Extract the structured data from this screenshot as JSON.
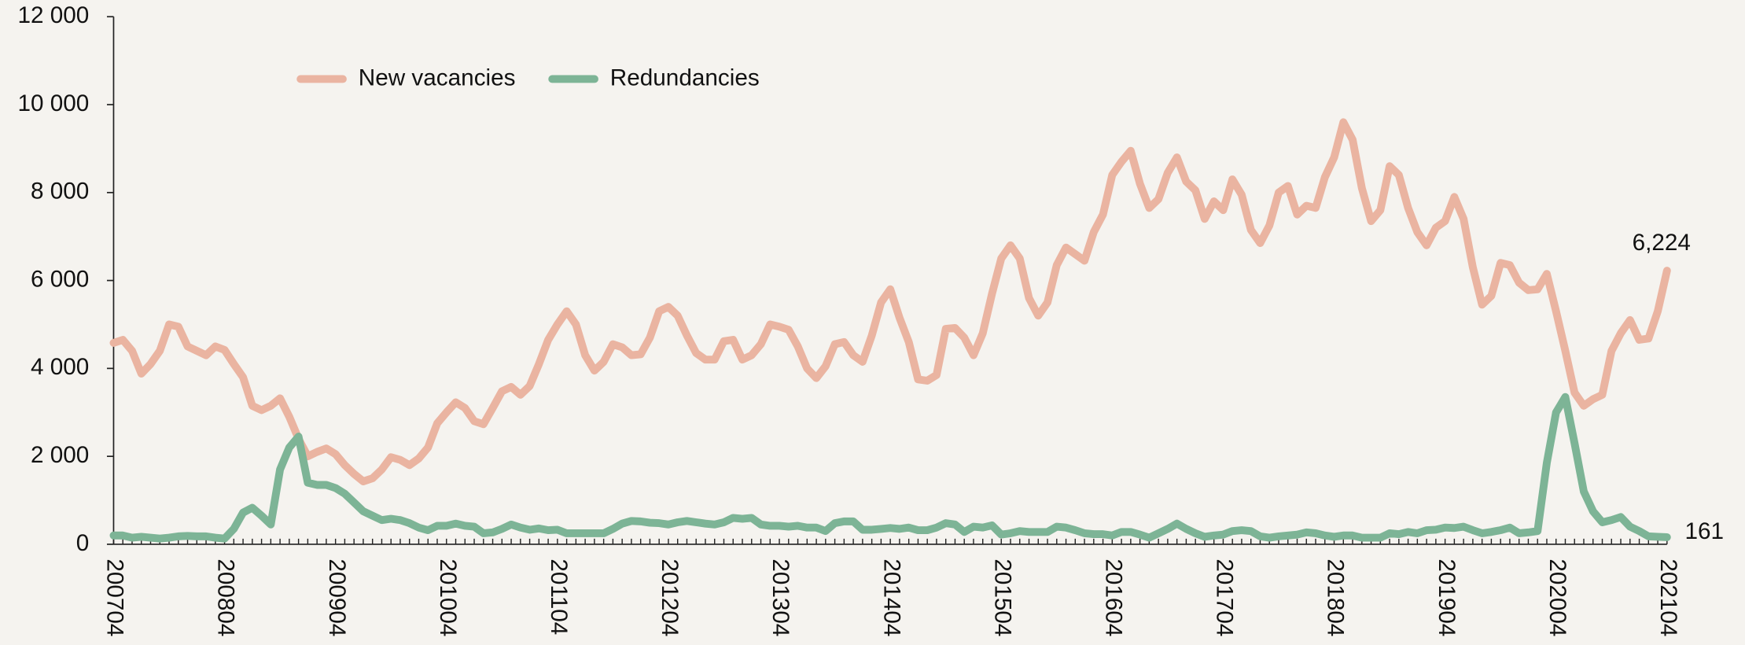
{
  "chart_data": {
    "type": "line",
    "categories": [
      "200704",
      null,
      null,
      null,
      null,
      null,
      null,
      null,
      null,
      null,
      null,
      null,
      "200804",
      null,
      null,
      null,
      null,
      null,
      null,
      null,
      null,
      null,
      null,
      null,
      "200904",
      null,
      null,
      null,
      null,
      null,
      null,
      null,
      null,
      null,
      null,
      null,
      "201004",
      null,
      null,
      null,
      null,
      null,
      null,
      null,
      null,
      null,
      null,
      null,
      "201104",
      null,
      null,
      null,
      null,
      null,
      null,
      null,
      null,
      null,
      null,
      null,
      "201204",
      null,
      null,
      null,
      null,
      null,
      null,
      null,
      null,
      null,
      null,
      null,
      "201304",
      null,
      null,
      null,
      null,
      null,
      null,
      null,
      null,
      null,
      null,
      null,
      "201404",
      null,
      null,
      null,
      null,
      null,
      null,
      null,
      null,
      null,
      null,
      null,
      "201504",
      null,
      null,
      null,
      null,
      null,
      null,
      null,
      null,
      null,
      null,
      null,
      "201604",
      null,
      null,
      null,
      null,
      null,
      null,
      null,
      null,
      null,
      null,
      null,
      "201704",
      null,
      null,
      null,
      null,
      null,
      null,
      null,
      null,
      null,
      null,
      null,
      "201804",
      null,
      null,
      null,
      null,
      null,
      null,
      null,
      null,
      null,
      null,
      null,
      "201904",
      null,
      null,
      null,
      null,
      null,
      null,
      null,
      null,
      null,
      null,
      null,
      "202004",
      null,
      null,
      null,
      null,
      null,
      null,
      null,
      null,
      null,
      null,
      null,
      "202104"
    ],
    "series": [
      {
        "name": "New vacancies",
        "color": "#eab4a1",
        "values": [
          4580,
          4650,
          4400,
          3880,
          4100,
          4400,
          5000,
          4950,
          4500,
          4400,
          4300,
          4500,
          4420,
          4100,
          3800,
          3150,
          3050,
          3150,
          3320,
          2900,
          2400,
          2000,
          2100,
          2180,
          2050,
          1800,
          1600,
          1430,
          1500,
          1700,
          1980,
          1920,
          1800,
          1950,
          2200,
          2750,
          3000,
          3230,
          3100,
          2800,
          2730,
          3100,
          3480,
          3580,
          3400,
          3600,
          4100,
          4650,
          5000,
          5300,
          5000,
          4300,
          3950,
          4150,
          4550,
          4480,
          4300,
          4320,
          4700,
          5300,
          5400,
          5200,
          4750,
          4350,
          4200,
          4200,
          4620,
          4650,
          4200,
          4300,
          4550,
          5000,
          4950,
          4880,
          4500,
          4000,
          3780,
          4050,
          4550,
          4600,
          4300,
          4150,
          4750,
          5500,
          5800,
          5150,
          4600,
          3750,
          3720,
          3850,
          4900,
          4920,
          4700,
          4300,
          4800,
          5700,
          6500,
          6800,
          6500,
          5600,
          5200,
          5500,
          6350,
          6750,
          6600,
          6450,
          7100,
          7500,
          8400,
          8700,
          8950,
          8200,
          7650,
          7850,
          8450,
          8800,
          8250,
          8050,
          7400,
          7800,
          7600,
          8300,
          7950,
          7150,
          6850,
          7250,
          8000,
          8150,
          7500,
          7700,
          7650,
          8350,
          8800,
          9600,
          9200,
          8100,
          7350,
          7600,
          8600,
          8400,
          7650,
          7100,
          6800,
          7200,
          7350,
          7900,
          7400,
          6300,
          5450,
          5650,
          6400,
          6350,
          5950,
          5780,
          5800,
          6150,
          5300,
          4400,
          3450,
          3150,
          3300,
          3400,
          4400,
          4800,
          5100,
          4650,
          4680,
          5300,
          6224
        ],
        "value_labels": [
          null,
          null,
          null,
          null,
          null,
          null,
          null,
          null,
          null,
          null,
          null,
          null,
          null,
          null,
          null,
          null,
          null,
          null,
          null,
          null,
          null,
          null,
          null,
          null,
          null,
          null,
          null,
          null,
          null,
          null,
          null,
          null,
          null,
          null,
          null,
          null,
          null,
          null,
          null,
          null,
          null,
          null,
          null,
          null,
          null,
          null,
          null,
          null,
          null,
          null,
          null,
          null,
          null,
          null,
          null,
          null,
          null,
          null,
          null,
          null,
          null,
          null,
          null,
          null,
          null,
          null,
          null,
          null,
          null,
          null,
          null,
          null,
          null,
          null,
          null,
          null,
          null,
          null,
          null,
          null,
          null,
          null,
          null,
          null,
          null,
          null,
          null,
          null,
          null,
          null,
          null,
          null,
          null,
          null,
          null,
          null,
          null,
          null,
          null,
          null,
          null,
          null,
          null,
          null,
          null,
          null,
          null,
          null,
          null,
          null,
          null,
          null,
          null,
          null,
          null,
          null,
          null,
          null,
          null,
          null,
          null,
          null,
          null,
          null,
          null,
          null,
          null,
          null,
          null,
          null,
          null,
          null,
          null,
          null,
          null,
          null,
          null,
          null,
          null,
          null,
          null,
          null,
          null,
          null,
          null,
          null,
          null,
          null,
          null,
          null,
          null,
          null,
          null,
          null,
          null,
          null,
          null,
          null,
          null,
          null,
          null,
          null,
          null,
          null,
          null,
          null,
          null,
          null,
          "6,224"
        ]
      },
      {
        "name": "Redundancies",
        "color": "#7db496",
        "values": [
          200,
          200,
          150,
          170,
          150,
          130,
          150,
          180,
          190,
          180,
          180,
          150,
          130,
          350,
          720,
          830,
          650,
          450,
          1700,
          2200,
          2450,
          1400,
          1350,
          1350,
          1280,
          1150,
          950,
          750,
          650,
          550,
          580,
          550,
          480,
          380,
          320,
          420,
          420,
          470,
          420,
          400,
          250,
          270,
          350,
          450,
          380,
          330,
          360,
          320,
          330,
          250,
          250,
          250,
          250,
          250,
          350,
          470,
          530,
          520,
          490,
          480,
          450,
          500,
          530,
          500,
          470,
          450,
          500,
          600,
          580,
          600,
          450,
          420,
          420,
          400,
          420,
          380,
          380,
          300,
          480,
          520,
          520,
          330,
          330,
          350,
          370,
          350,
          380,
          320,
          320,
          380,
          480,
          450,
          280,
          400,
          380,
          430,
          220,
          250,
          300,
          280,
          280,
          280,
          400,
          380,
          320,
          250,
          230,
          230,
          200,
          280,
          280,
          220,
          150,
          250,
          350,
          470,
          350,
          250,
          170,
          200,
          220,
          300,
          320,
          300,
          180,
          150,
          180,
          200,
          220,
          270,
          250,
          200,
          170,
          200,
          200,
          150,
          150,
          150,
          250,
          230,
          280,
          250,
          320,
          330,
          380,
          370,
          400,
          320,
          250,
          280,
          320,
          380,
          250,
          270,
          300,
          1850,
          3000,
          3350,
          2300,
          1200,
          750,
          500,
          550,
          620,
          400,
          300,
          180,
          170,
          161
        ]
      }
    ],
    "ylim": [
      0,
      12000
    ],
    "yticks": [
      0,
      {
        "value": 2000,
        "label": "2 000"
      },
      {
        "value": 4000,
        "label": "4 000"
      },
      {
        "value": 6000,
        "label": "6 000"
      },
      {
        "value": 8000,
        "label": "8 000"
      },
      {
        "value": 10000,
        "label": "10 000"
      },
      {
        "value": 12000,
        "label": "12 000"
      }
    ],
    "grid": false,
    "legend": "upper left"
  }
}
